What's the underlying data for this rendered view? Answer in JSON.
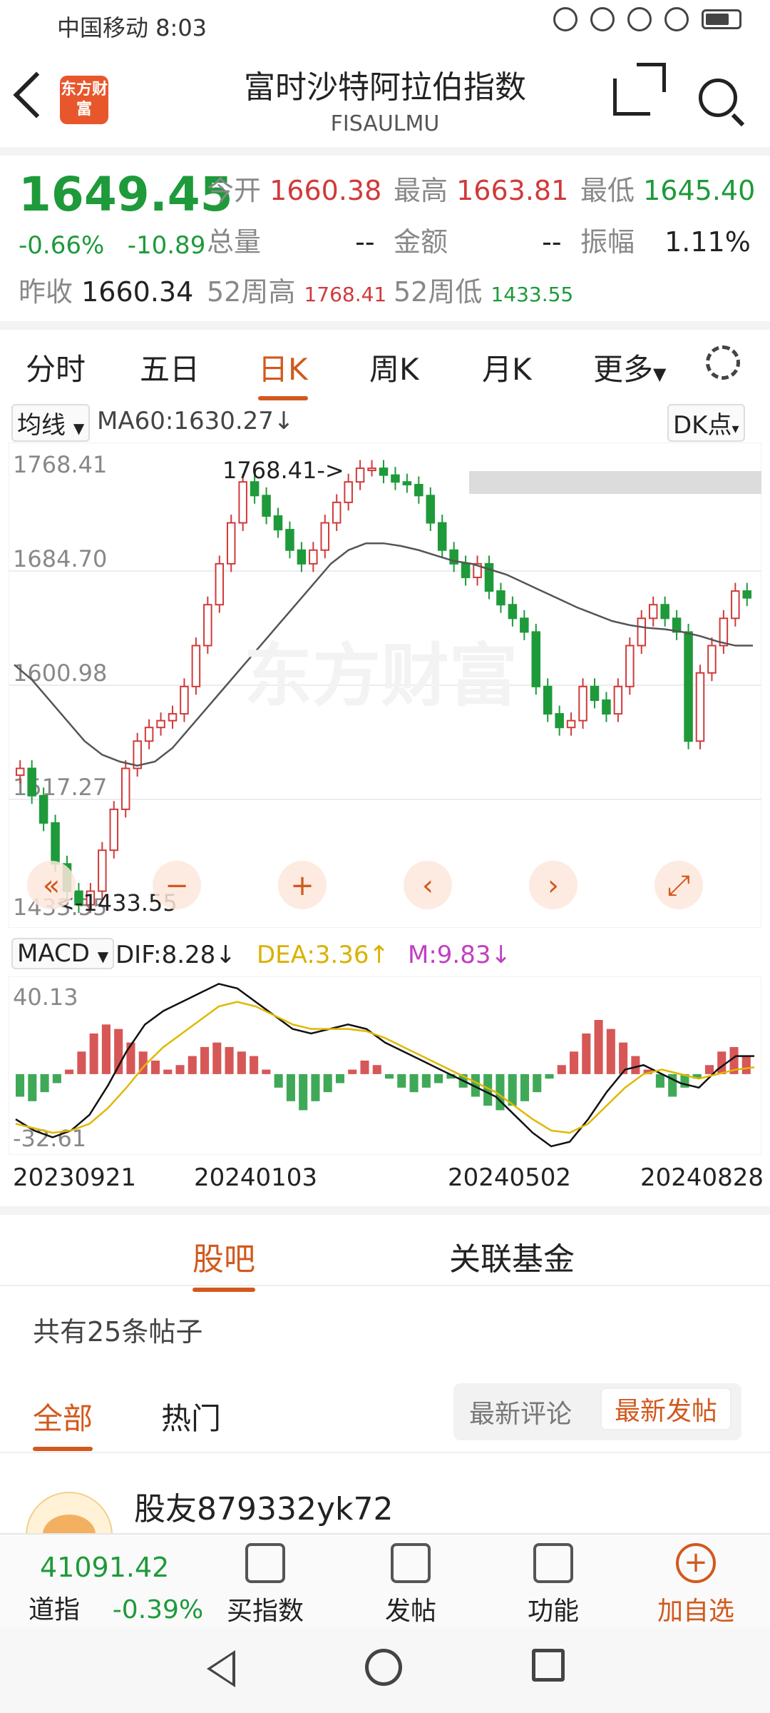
{
  "status_bar": {
    "carrier_time": "中国移动 8:03"
  },
  "header": {
    "title": "富时沙特阿拉伯指数",
    "code": "FISAULMU",
    "logo_text": "东方财富"
  },
  "quote": {
    "price": "1649.45",
    "change_pct": "-0.66%",
    "change_abs": "-10.89",
    "prev_close_label": "昨收",
    "prev_close": "1660.34",
    "open_label": "今开",
    "open": "1660.38",
    "high_label": "最高",
    "high": "1663.81",
    "low_label": "最低",
    "low": "1645.40",
    "volume_label": "总量",
    "volume": "--",
    "amount_label": "金额",
    "amount": "--",
    "amplitude_label": "振幅",
    "amplitude": "1.11%",
    "w52_high_label": "52周高",
    "w52_high": "1768.41",
    "w52_low_label": "52周低",
    "w52_low": "1433.55"
  },
  "period_tabs": [
    "分时",
    "五日",
    "日K",
    "周K",
    "月K",
    "更多"
  ],
  "period_active": "日K",
  "indicator": {
    "ma_button": "均线",
    "ma60": "MA60:1630.27↓",
    "dk_button": "DK点"
  },
  "macd": {
    "button": "MACD",
    "dif": "DIF:8.28↓",
    "dea": "DEA:3.36↑",
    "m": "M:9.83↓"
  },
  "colors": {
    "up": "#d03a3a",
    "down": "#1e9a3a",
    "accent": "#d2591e",
    "dea": "#e0b800",
    "m": "#c040c0"
  },
  "chart_data": [
    {
      "type": "line",
      "title": "日K",
      "y_ticks": [
        "1768.41",
        "1684.70",
        "1600.98",
        "1517.27",
        "1433.55"
      ],
      "ylim": [
        1433.55,
        1768.41
      ],
      "x_ticks": [
        "20230921",
        "20240103",
        "20240502",
        "20240828"
      ],
      "max_label": "1768.41->",
      "min_label": "<-1433.55",
      "series": [
        {
          "name": "Close",
          "values": [
            1540,
            1520,
            1500,
            1470,
            1450,
            1440,
            1450,
            1480,
            1510,
            1540,
            1560,
            1570,
            1575,
            1580,
            1600,
            1630,
            1660,
            1690,
            1720,
            1750,
            1740,
            1725,
            1715,
            1700,
            1690,
            1700,
            1720,
            1735,
            1750,
            1760,
            1760,
            1755,
            1750,
            1748,
            1740,
            1720,
            1700,
            1690,
            1680,
            1690,
            1670,
            1660,
            1650,
            1640,
            1600,
            1580,
            1570,
            1575,
            1600,
            1590,
            1580,
            1600,
            1630,
            1650,
            1660,
            1650,
            1640,
            1560,
            1610,
            1630,
            1650,
            1670,
            1665
          ]
        },
        {
          "name": "MA60",
          "values": [
            1616,
            1605,
            1590,
            1575,
            1560,
            1550,
            1545,
            1542,
            1545,
            1555,
            1570,
            1585,
            1600,
            1615,
            1630,
            1645,
            1660,
            1675,
            1690,
            1700,
            1705,
            1705,
            1703,
            1700,
            1696,
            1692,
            1690,
            1686,
            1682,
            1676,
            1670,
            1664,
            1658,
            1653,
            1648,
            1645,
            1643,
            1642,
            1640,
            1637,
            1633,
            1630,
            1630
          ]
        }
      ]
    },
    {
      "type": "bar",
      "title": "MACD",
      "y_ticks": [
        "40.13",
        "-32.61"
      ],
      "ylim": [
        -32.61,
        40.13
      ],
      "series": [
        {
          "name": "M",
          "values": [
            -10,
            -12,
            -8,
            -4,
            2,
            10,
            18,
            22,
            20,
            14,
            10,
            6,
            2,
            4,
            8,
            12,
            14,
            12,
            10,
            8,
            2,
            -6,
            -12,
            -16,
            -12,
            -8,
            -4,
            2,
            6,
            4,
            -2,
            -6,
            -8,
            -6,
            -4,
            -2,
            -6,
            -10,
            -14,
            -16,
            -14,
            -12,
            -8,
            -2,
            4,
            10,
            18,
            24,
            20,
            14,
            8,
            2,
            -6,
            -10,
            -6,
            -2,
            4,
            10,
            12,
            8
          ]
        },
        {
          "name": "DIF",
          "values": [
            -20,
            -25,
            -28,
            -25,
            -18,
            -5,
            10,
            22,
            28,
            32,
            36,
            40,
            38,
            32,
            26,
            20,
            18,
            20,
            22,
            20,
            14,
            10,
            6,
            2,
            -2,
            -6,
            -10,
            -18,
            -26,
            -32,
            -30,
            -20,
            -8,
            2,
            4,
            0,
            -4,
            -6,
            2,
            8,
            8
          ]
        },
        {
          "name": "DEA",
          "values": [
            -22,
            -24,
            -26,
            -25,
            -22,
            -15,
            -6,
            4,
            12,
            18,
            24,
            30,
            32,
            30,
            26,
            22,
            20,
            20,
            20,
            19,
            16,
            12,
            8,
            4,
            0,
            -4,
            -8,
            -14,
            -20,
            -25,
            -26,
            -22,
            -14,
            -6,
            0,
            2,
            0,
            -2,
            0,
            2,
            3
          ]
        }
      ]
    }
  ],
  "social_tabs": [
    "股吧",
    "关联基金"
  ],
  "post_count": "共有25条帖子",
  "filter_tabs": [
    "全部",
    "热门"
  ],
  "sort_options": [
    "最新评论",
    "最新发帖"
  ],
  "post": {
    "username": "股友879332yk72"
  },
  "toolbar": {
    "index_value": "41091.42",
    "index_name": "道指",
    "index_change": "-0.39%",
    "items": [
      "买指数",
      "发帖",
      "功能",
      "加自选"
    ]
  }
}
